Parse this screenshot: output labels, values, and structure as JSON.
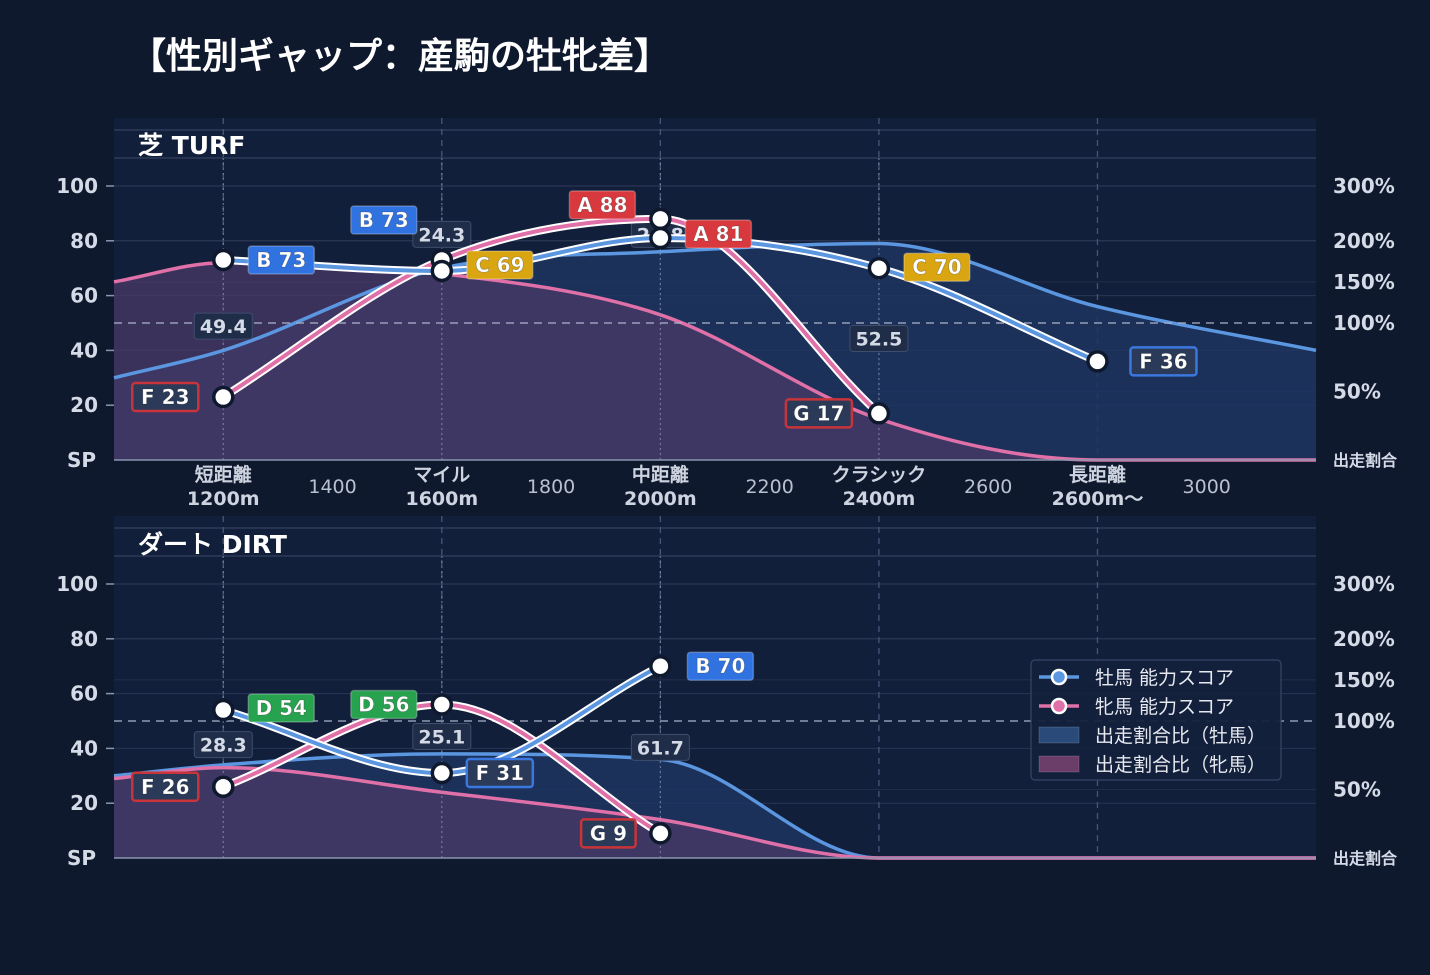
{
  "title": "【性別ギャップ：産駒の牡牝差】",
  "colors": {
    "background": "#0f192e",
    "panel": "#121f3a",
    "male_line": "#5b96e0",
    "female_line": "#e070a8",
    "male_fill": "#1e3560",
    "female_fill": "#4a3a68",
    "grade": {
      "A": "#d8393e",
      "B": "#2f72e0",
      "C": "#d9a511",
      "D": "#27a24f",
      "F": "#2a3a58",
      "G": "#2a3a58"
    }
  },
  "chart_data": {
    "type": "line",
    "shared": {
      "x_major": [
        {
          "x": 1200,
          "label": "短距離",
          "sub": "1200m"
        },
        {
          "x": 1600,
          "label": "マイル",
          "sub": "1600m"
        },
        {
          "x": 2000,
          "label": "中距離",
          "sub": "2000m"
        },
        {
          "x": 2400,
          "label": "クラシック",
          "sub": "2400m"
        },
        {
          "x": 2800,
          "label": "長距離",
          "sub": "2600m〜"
        }
      ],
      "x_minor": [
        {
          "x": 1400,
          "label": "1400"
        },
        {
          "x": 1800,
          "label": "1800"
        },
        {
          "x": 2200,
          "label": "2200"
        },
        {
          "x": 2600,
          "label": "2600"
        },
        {
          "x": 3000,
          "label": "3000"
        }
      ],
      "xlim": [
        1000,
        3200
      ],
      "left_axis": {
        "ylim": [
          0,
          100
        ],
        "ticks": [
          100,
          80,
          60,
          40,
          20
        ],
        "zero_label": "SP"
      },
      "right_axis": {
        "ticks": [
          {
            "pct": 300,
            "label": "300%"
          },
          {
            "pct": 200,
            "label": "200%"
          },
          {
            "pct": 150,
            "label": "150%"
          },
          {
            "pct": 100,
            "label": "100%"
          },
          {
            "pct": 50,
            "label": "50%"
          }
        ],
        "zero_label": "出走割合"
      }
    },
    "panels": [
      {
        "title": "芝 TURF",
        "male_score": {
          "name": "牡馬 能力スコア",
          "points": [
            {
              "x": 1200,
              "y": 73,
              "label": "B 73",
              "grade": "B"
            },
            {
              "x": 1600,
              "y": 69,
              "label": "C 69",
              "grade": "C"
            },
            {
              "x": 2000,
              "y": 81,
              "label": "A 81",
              "grade": "A"
            },
            {
              "x": 2400,
              "y": 70,
              "label": "C 70",
              "grade": "C"
            },
            {
              "x": 2800,
              "y": 36,
              "label": "F 36",
              "grade": "F"
            }
          ]
        },
        "female_score": {
          "name": "牝馬 能力スコア",
          "points": [
            {
              "x": 1200,
              "y": 23,
              "label": "F 23",
              "grade": "F"
            },
            {
              "x": 1600,
              "y": 73,
              "label": "B 73",
              "grade": "B"
            },
            {
              "x": 2000,
              "y": 88,
              "label": "A 88",
              "grade": "A"
            },
            {
              "x": 2400,
              "y": 17,
              "label": "G 17",
              "grade": "G"
            }
          ]
        },
        "male_ratio": {
          "name": "出走割合比（牡馬）",
          "points": [
            [
              1000,
              30
            ],
            [
              1200,
              40
            ],
            [
              1600,
              70
            ],
            [
              2000,
              76
            ],
            [
              2400,
              79
            ],
            [
              2800,
              56
            ],
            [
              3200,
              40
            ]
          ]
        },
        "female_ratio": {
          "name": "出走割合比（牝馬）",
          "points": [
            [
              1000,
              65
            ],
            [
              1200,
              72
            ],
            [
              1600,
              68
            ],
            [
              2000,
              53
            ],
            [
              2400,
              15
            ],
            [
              2800,
              0
            ],
            [
              3200,
              0
            ]
          ]
        },
        "ratio_labels": [
          {
            "x": 1200,
            "value": "49.4"
          },
          {
            "x": 1600,
            "value": "24.3"
          },
          {
            "x": 2000,
            "value": "24.8"
          },
          {
            "x": 2400,
            "value": "52.5"
          }
        ]
      },
      {
        "title": "ダート DIRT",
        "male_score": {
          "name": "牡馬 能力スコア",
          "points": [
            {
              "x": 1200,
              "y": 54,
              "label": "D 54",
              "grade": "D"
            },
            {
              "x": 1600,
              "y": 31,
              "label": "F 31",
              "grade": "F"
            },
            {
              "x": 2000,
              "y": 70,
              "label": "B 70",
              "grade": "B"
            }
          ]
        },
        "female_score": {
          "name": "牝馬 能力スコア",
          "points": [
            {
              "x": 1200,
              "y": 26,
              "label": "F 26",
              "grade": "F"
            },
            {
              "x": 1600,
              "y": 56,
              "label": "D 56",
              "grade": "D"
            },
            {
              "x": 2000,
              "y": 9,
              "label": "G 9",
              "grade": "G"
            }
          ]
        },
        "male_ratio": {
          "name": "出走割合比（牡馬）",
          "points": [
            [
              1000,
              30
            ],
            [
              1200,
              34
            ],
            [
              1600,
              38
            ],
            [
              2000,
              36
            ],
            [
              2400,
              0
            ],
            [
              3200,
              0
            ]
          ]
        },
        "female_ratio": {
          "name": "出走割合比（牝馬）",
          "points": [
            [
              1000,
              29
            ],
            [
              1200,
              33
            ],
            [
              1600,
              24
            ],
            [
              2000,
              14
            ],
            [
              2400,
              0
            ],
            [
              3200,
              0
            ]
          ]
        },
        "ratio_labels": [
          {
            "x": 1200,
            "value": "28.3"
          },
          {
            "x": 1600,
            "value": "25.1"
          },
          {
            "x": 2000,
            "value": "61.7"
          }
        ]
      }
    ],
    "legend": {
      "placement": "right",
      "entries": [
        {
          "label": "牡馬 能力スコア",
          "kind": "male_line"
        },
        {
          "label": "牝馬 能力スコア",
          "kind": "female_line"
        },
        {
          "label": "出走割合比（牡馬）",
          "kind": "male_fill"
        },
        {
          "label": "出走割合比（牝馬）",
          "kind": "female_fill"
        }
      ]
    }
  }
}
